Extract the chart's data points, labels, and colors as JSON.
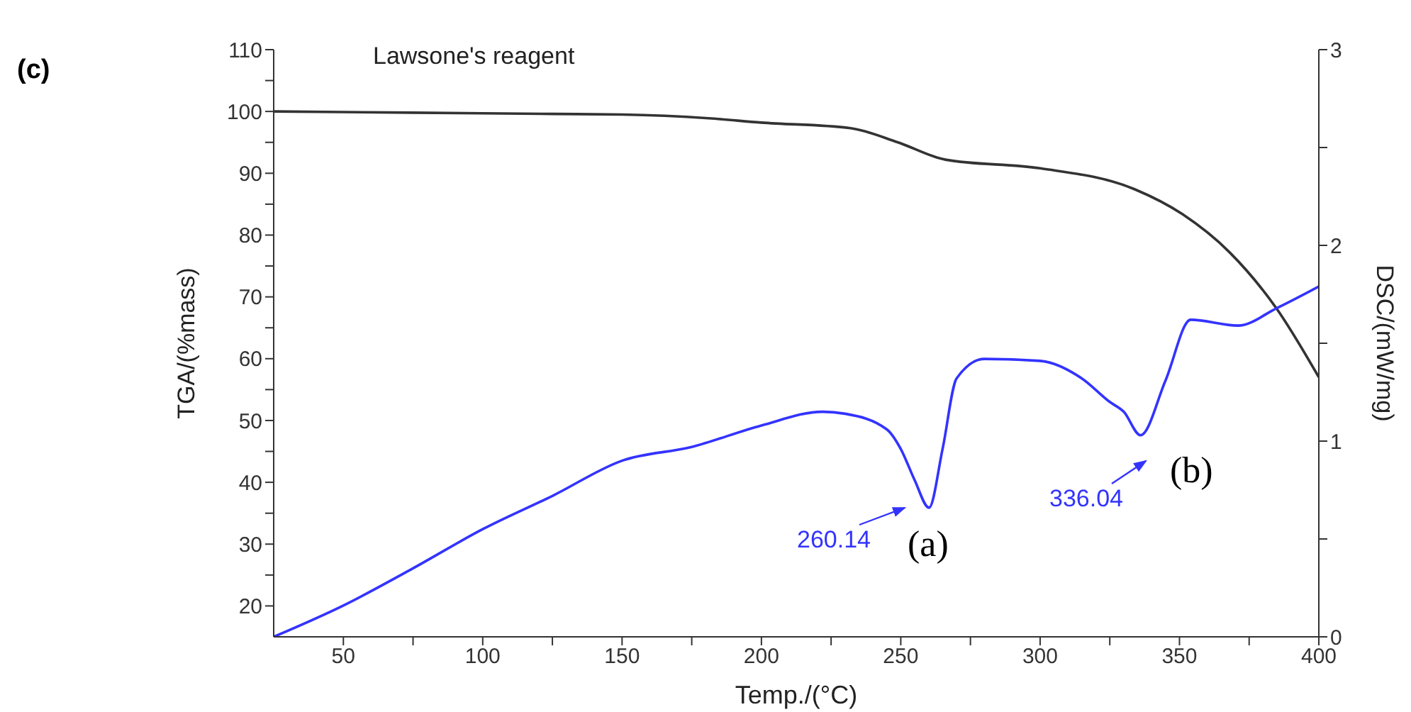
{
  "chart_data": {
    "type": "line",
    "title": "Lawsone's reagent",
    "xlabel": "Temp./(°C)",
    "ylabel": "TGA/(%mass)",
    "y2label": "DSC/(mW/mg)",
    "xlim": [
      25,
      400
    ],
    "xticks": [
      50,
      {
        "value": 75,
        "label": null
      },
      100,
      {
        "value": 125,
        "label": null
      },
      150,
      {
        "value": 175,
        "label": null
      },
      200,
      {
        "value": 225,
        "label": null
      },
      250,
      {
        "value": 275,
        "label": null
      },
      300,
      {
        "value": 325,
        "label": null
      },
      350,
      {
        "value": 375,
        "label": null
      },
      400
    ],
    "ylim": [
      15,
      110
    ],
    "yticks": [
      20,
      {
        "value": 25,
        "label": null
      },
      30,
      {
        "value": 35,
        "label": null
      },
      40,
      {
        "value": 45,
        "label": null
      },
      50,
      {
        "value": 55,
        "label": null
      },
      60,
      {
        "value": 65,
        "label": null
      },
      70,
      {
        "value": 75,
        "label": null
      },
      80,
      {
        "value": 85,
        "label": null
      },
      90,
      {
        "value": 95,
        "label": null
      },
      100,
      {
        "value": 105,
        "label": null
      },
      110
    ],
    "y2lim": [
      0,
      3
    ],
    "y2ticks": [
      0,
      {
        "value": 0.5,
        "label": null
      },
      1,
      {
        "value": 1.5,
        "label": null
      },
      2,
      {
        "value": 2.5,
        "label": null
      },
      3
    ],
    "marker": "none",
    "series": [
      {
        "color": "#333333",
        "x": [
          25,
          75,
          125,
          150,
          181,
          200,
          232,
          249,
          266,
          300,
          334,
          351,
          368,
          385,
          400
        ],
        "values": [
          100,
          99.8,
          99.6,
          99.5,
          98.9,
          98.2,
          97.3,
          95,
          92.2,
          90.8,
          87.4,
          83.4,
          77.2,
          68,
          57
        ]
      },
      {
        "color": "#3333ff",
        "axis": "y2",
        "x": [
          25,
          50,
          75,
          100,
          125,
          150,
          175,
          200,
          222,
          230,
          245,
          250,
          255,
          260.14,
          265,
          270,
          280,
          300,
          315,
          325,
          330,
          336.04,
          345,
          354,
          371,
          385,
          400
        ],
        "values": [
          0,
          0.16,
          0.35,
          0.55,
          0.72,
          0.9,
          0.97,
          1.08,
          1.15,
          1.14,
          1.06,
          0.96,
          0.8,
          0.66,
          0.96,
          1.32,
          1.42,
          1.41,
          1.32,
          1.2,
          1.15,
          1.03,
          1.31,
          1.62,
          1.59,
          1.68,
          1.79
        ]
      }
    ],
    "annotations": [
      "260.14",
      "(a)",
      "336.04",
      "(b)",
      "(c)"
    ]
  }
}
